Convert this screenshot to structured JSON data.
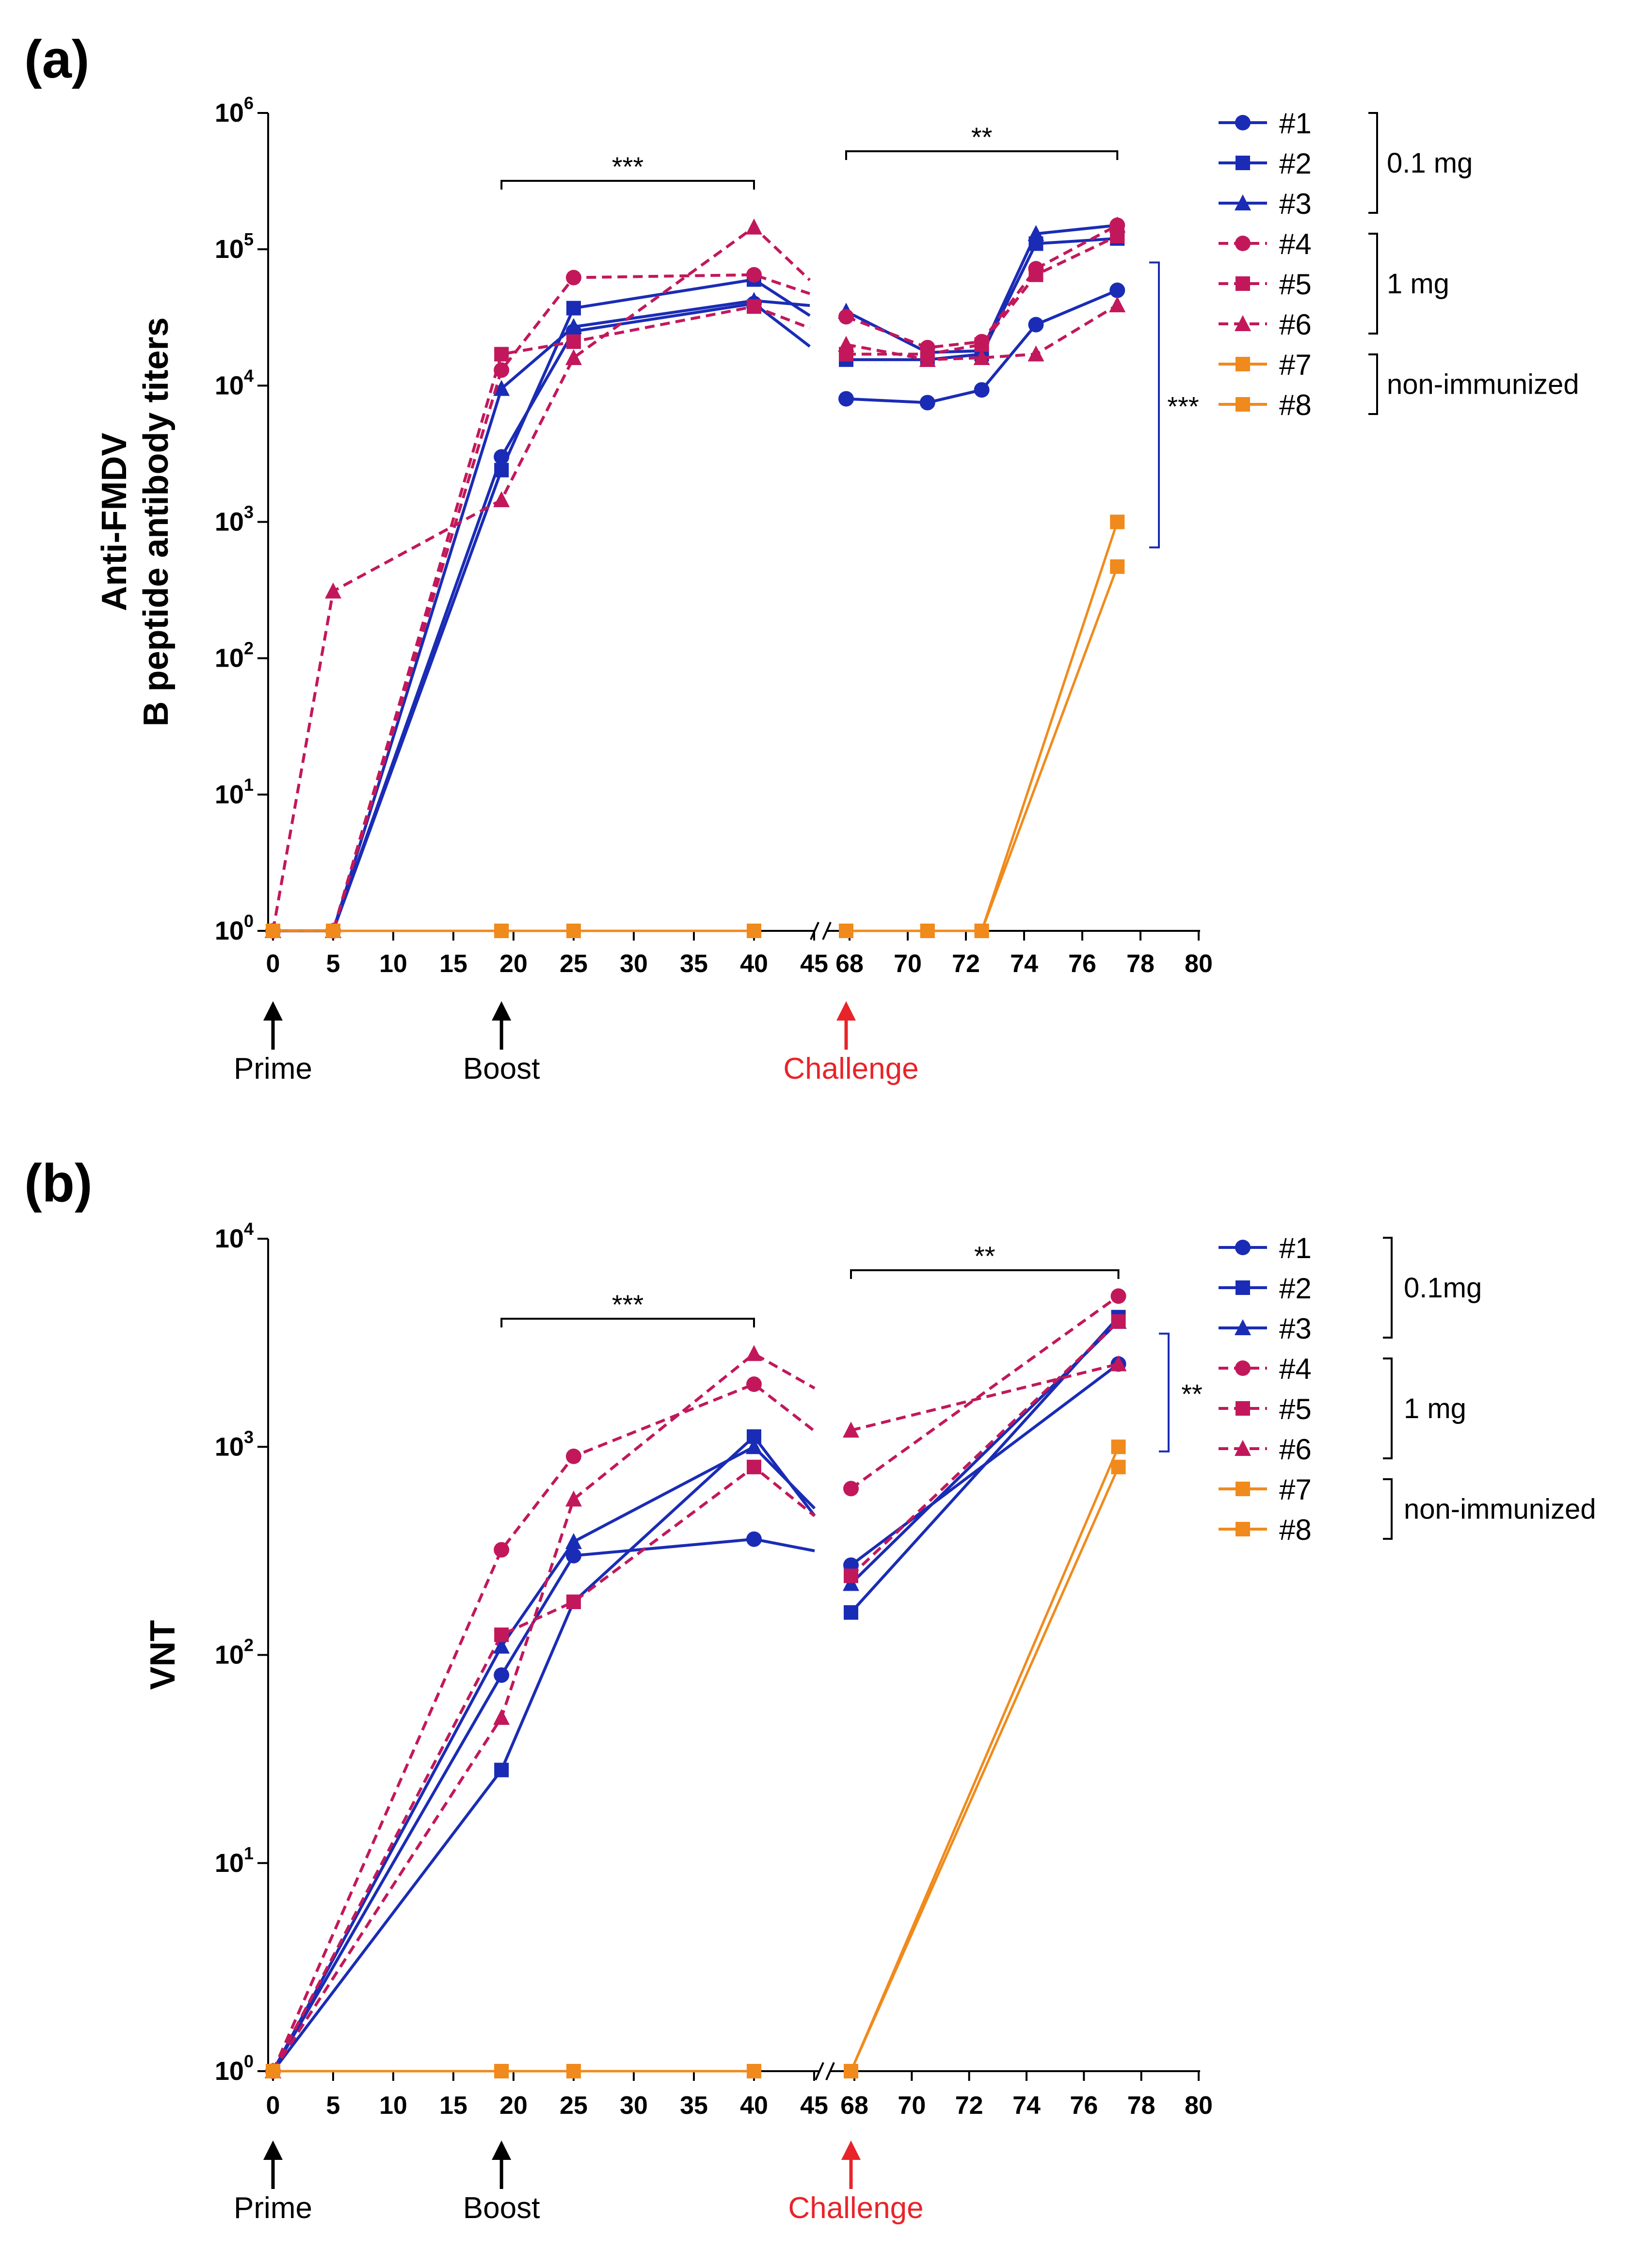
{
  "colors": {
    "low_dose": "#1a2cb5",
    "high_dose": "#c2185b",
    "non_immunized": "#f08a1c",
    "challenge_arrow": "#e8242a",
    "axis": "#000000"
  },
  "chart_data": [
    {
      "panel_label": "(a)",
      "type": "line",
      "yscale": "log10",
      "ylabel_line1": "Anti-FMDV",
      "ylabel_line2": "B peptide antibody titers",
      "ylim": [
        1,
        1000000
      ],
      "y_ticks": [
        {
          "base": "10",
          "exp": "0"
        },
        {
          "base": "10",
          "exp": "1"
        },
        {
          "base": "10",
          "exp": "2"
        },
        {
          "base": "10",
          "exp": "3"
        },
        {
          "base": "10",
          "exp": "4"
        },
        {
          "base": "10",
          "exp": "5"
        },
        {
          "base": "10",
          "exp": "6"
        }
      ],
      "x_tick_labels": [
        "0",
        "5",
        "10",
        "15",
        "20",
        "25",
        "30",
        "35",
        "40",
        "45",
        "68",
        "70",
        "72",
        "74",
        "76",
        "78",
        "80"
      ],
      "x_axis_break": "between 45 and 68",
      "events": [
        {
          "label": "Prime",
          "x_label": "0",
          "color": "#000000"
        },
        {
          "label": "Boost",
          "x_label": "19",
          "color": "#000000"
        },
        {
          "label": "Challenge",
          "x_label": "67",
          "color": "#e8242a"
        }
      ],
      "significance": [
        {
          "label": "***",
          "from": "19",
          "to": "40"
        },
        {
          "label": "**",
          "from": "67",
          "to": "77"
        },
        {
          "label": "***",
          "orientation": "vertical",
          "y_from": 650,
          "y_to": 80000
        }
      ],
      "legend": [
        {
          "group": "0.1 mg",
          "entries": [
            {
              "label": "#1",
              "marker": "circle"
            },
            {
              "label": "#2",
              "marker": "square"
            },
            {
              "label": "#3",
              "marker": "triangle"
            }
          ]
        },
        {
          "group": "1 mg",
          "entries": [
            {
              "label": "#4",
              "marker": "circle"
            },
            {
              "label": "#5",
              "marker": "square"
            },
            {
              "label": "#6",
              "marker": "triangle"
            }
          ]
        },
        {
          "group": "non-immunized",
          "entries": [
            {
              "label": "#7",
              "marker": "square"
            },
            {
              "label": "#8",
              "marker": "square"
            }
          ]
        }
      ],
      "series": [
        {
          "name": "#1",
          "group": "0.1 mg",
          "marker": "circle",
          "values": [
            [
              0,
              1
            ],
            [
              5,
              1
            ],
            [
              19,
              3000
            ],
            [
              25,
              25000
            ],
            [
              40,
              40000
            ],
            [
              67,
              8000
            ],
            [
              70,
              7500
            ],
            [
              72,
              9300
            ],
            [
              74,
              28000
            ],
            [
              77,
              50000
            ]
          ]
        },
        {
          "name": "#2",
          "group": "0.1 mg",
          "marker": "square",
          "values": [
            [
              0,
              1
            ],
            [
              5,
              1
            ],
            [
              19,
              2400
            ],
            [
              25,
              37000
            ],
            [
              40,
              60000
            ],
            [
              67,
              15500
            ],
            [
              70,
              15500
            ],
            [
              72,
              17000
            ],
            [
              74,
              110000
            ],
            [
              77,
              120000
            ]
          ]
        },
        {
          "name": "#3",
          "group": "0.1 mg",
          "marker": "triangle",
          "values": [
            [
              0,
              1
            ],
            [
              5,
              1
            ],
            [
              19,
              9500
            ],
            [
              25,
              27000
            ],
            [
              40,
              42000
            ],
            [
              67,
              35000
            ],
            [
              70,
              17500
            ],
            [
              72,
              18000
            ],
            [
              74,
              130000
            ],
            [
              77,
              150000
            ]
          ]
        },
        {
          "name": "#4",
          "group": "1 mg",
          "marker": "circle",
          "values": [
            [
              0,
              1
            ],
            [
              5,
              1
            ],
            [
              19,
              13000
            ],
            [
              25,
              62000
            ],
            [
              40,
              65000
            ],
            [
              67,
              32000
            ],
            [
              70,
              19000
            ],
            [
              72,
              21000
            ],
            [
              74,
              72000
            ],
            [
              77,
              150000
            ]
          ]
        },
        {
          "name": "#5",
          "group": "1 mg",
          "marker": "square",
          "values": [
            [
              0,
              1
            ],
            [
              5,
              1
            ],
            [
              19,
              17000
            ],
            [
              25,
              21000
            ],
            [
              40,
              38000
            ],
            [
              67,
              17000
            ],
            [
              70,
              17000
            ],
            [
              72,
              20000
            ],
            [
              74,
              65000
            ],
            [
              77,
              125000
            ]
          ]
        },
        {
          "name": "#6",
          "group": "1 mg",
          "marker": "triangle",
          "values": [
            [
              0,
              1
            ],
            [
              5,
              310
            ],
            [
              19,
              1450
            ],
            [
              25,
              16000
            ],
            [
              40,
              145000
            ],
            [
              67,
              20000
            ],
            [
              70,
              15500
            ],
            [
              72,
              16000
            ],
            [
              74,
              17000
            ],
            [
              77,
              39000
            ]
          ]
        },
        {
          "name": "#7",
          "group": "non-immunized",
          "marker": "square",
          "values": [
            [
              0,
              1
            ],
            [
              5,
              1
            ],
            [
              19,
              1
            ],
            [
              25,
              1
            ],
            [
              40,
              1
            ],
            [
              67,
              1
            ],
            [
              70,
              1
            ],
            [
              72,
              1
            ],
            [
              77,
              1000
            ]
          ]
        },
        {
          "name": "#8",
          "group": "non-immunized",
          "marker": "square",
          "values": [
            [
              0,
              1
            ],
            [
              5,
              1
            ],
            [
              19,
              1
            ],
            [
              25,
              1
            ],
            [
              40,
              1
            ],
            [
              67,
              1
            ],
            [
              70,
              1
            ],
            [
              72,
              1
            ],
            [
              77,
              470
            ]
          ]
        }
      ]
    },
    {
      "panel_label": "(b)",
      "type": "line",
      "yscale": "log10",
      "ylabel_line1": "VNT",
      "ylabel_line2": "",
      "ylim": [
        1,
        10000
      ],
      "y_ticks": [
        {
          "base": "10",
          "exp": "0"
        },
        {
          "base": "10",
          "exp": "1"
        },
        {
          "base": "10",
          "exp": "2"
        },
        {
          "base": "10",
          "exp": "3"
        },
        {
          "base": "10",
          "exp": "4"
        }
      ],
      "x_tick_labels": [
        "0",
        "5",
        "10",
        "15",
        "20",
        "25",
        "30",
        "35",
        "40",
        "45",
        "68",
        "70",
        "72",
        "74",
        "76",
        "78",
        "80"
      ],
      "x_axis_break": "between 45 and 68",
      "events": [
        {
          "label": "Prime",
          "x_label": "0",
          "color": "#000000"
        },
        {
          "label": "Boost",
          "x_label": "19",
          "color": "#000000"
        },
        {
          "label": "Challenge",
          "x_label": "67",
          "color": "#e8242a"
        }
      ],
      "significance": [
        {
          "label": "***",
          "from": "19",
          "to": "40"
        },
        {
          "label": "**",
          "from": "67",
          "to": "77"
        },
        {
          "label": "**",
          "orientation": "vertical",
          "y_from": 950,
          "y_to": 3500
        }
      ],
      "legend": [
        {
          "group": "0.1mg",
          "entries": [
            {
              "label": "#1",
              "marker": "circle"
            },
            {
              "label": "#2",
              "marker": "square"
            },
            {
              "label": "#3",
              "marker": "triangle"
            }
          ]
        },
        {
          "group": "1 mg",
          "entries": [
            {
              "label": "#4",
              "marker": "circle"
            },
            {
              "label": "#5",
              "marker": "square"
            },
            {
              "label": "#6",
              "marker": "triangle"
            }
          ]
        },
        {
          "group": "non-immunized",
          "entries": [
            {
              "label": "#7",
              "marker": "square"
            },
            {
              "label": "#8",
              "marker": "square"
            }
          ]
        }
      ],
      "series": [
        {
          "name": "#1",
          "group": "0.1mg",
          "marker": "circle",
          "values": [
            [
              0,
              1
            ],
            [
              19,
              80
            ],
            [
              25,
              300
            ],
            [
              40,
              360
            ],
            [
              67,
              270
            ],
            [
              77,
              2500
            ]
          ]
        },
        {
          "name": "#2",
          "group": "0.1mg",
          "marker": "square",
          "values": [
            [
              0,
              1
            ],
            [
              19,
              28
            ],
            [
              25,
              180
            ],
            [
              40,
              1120
            ],
            [
              67,
              160
            ],
            [
              77,
              4200
            ]
          ]
        },
        {
          "name": "#3",
          "group": "0.1mg",
          "marker": "triangle",
          "values": [
            [
              0,
              1
            ],
            [
              19,
              110
            ],
            [
              25,
              350
            ],
            [
              40,
              1000
            ],
            [
              67,
              220
            ],
            [
              77,
              4000
            ]
          ]
        },
        {
          "name": "#4",
          "group": "1 mg",
          "marker": "circle",
          "values": [
            [
              0,
              1
            ],
            [
              19,
              320
            ],
            [
              25,
              900
            ],
            [
              40,
              2000
            ],
            [
              67,
              630
            ],
            [
              77,
              5300
            ]
          ]
        },
        {
          "name": "#5",
          "group": "1 mg",
          "marker": "square",
          "values": [
            [
              0,
              1
            ],
            [
              19,
              125
            ],
            [
              25,
              180
            ],
            [
              40,
              800
            ],
            [
              67,
              240
            ],
            [
              77,
              4000
            ]
          ]
        },
        {
          "name": "#6",
          "group": "1 mg",
          "marker": "triangle",
          "values": [
            [
              0,
              1
            ],
            [
              19,
              50
            ],
            [
              25,
              560
            ],
            [
              40,
              2800
            ],
            [
              67,
              1200
            ],
            [
              77,
              2500
            ]
          ]
        },
        {
          "name": "#7",
          "group": "non-immunized",
          "marker": "square",
          "values": [
            [
              0,
              1
            ],
            [
              19,
              1
            ],
            [
              25,
              1
            ],
            [
              40,
              1
            ],
            [
              67,
              1
            ],
            [
              77,
              1000
            ]
          ]
        },
        {
          "name": "#8",
          "group": "non-immunized",
          "marker": "square",
          "values": [
            [
              0,
              1
            ],
            [
              19,
              1
            ],
            [
              25,
              1
            ],
            [
              40,
              1
            ],
            [
              67,
              1
            ],
            [
              77,
              800
            ]
          ]
        }
      ]
    }
  ]
}
